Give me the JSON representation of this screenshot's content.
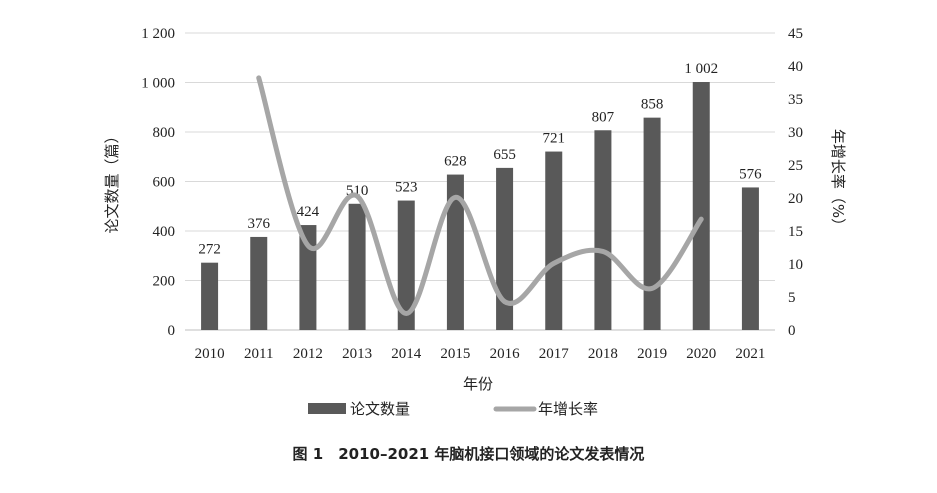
{
  "chart_data": {
    "type": "bar",
    "categories": [
      "2010",
      "2011",
      "2012",
      "2013",
      "2014",
      "2015",
      "2016",
      "2017",
      "2018",
      "2019",
      "2020",
      "2021"
    ],
    "series": [
      {
        "name": "论文数量",
        "type": "bar",
        "axis": "left",
        "color": "#595959",
        "values": [
          272,
          376,
          424,
          510,
          523,
          628,
          655,
          721,
          807,
          858,
          1002,
          576
        ],
        "labels": [
          "272",
          "376",
          "424",
          "510",
          "523",
          "628",
          "655",
          "721",
          "807",
          "858",
          "1 002",
          "576"
        ]
      },
      {
        "name": "年增长率",
        "type": "line",
        "axis": "right",
        "color": "#a6a6a6",
        "values": [
          null,
          38.2,
          12.8,
          20.3,
          2.5,
          20.1,
          4.3,
          10.1,
          11.9,
          6.3,
          16.8,
          null
        ]
      }
    ],
    "xlabel": "年份",
    "ylabel": "论文数量（篇）",
    "y2label": "年增长率（%）",
    "ylim": [
      0,
      1200
    ],
    "y2lim": [
      0,
      45
    ],
    "yticks": [
      "0",
      "200",
      "400",
      "600",
      "800",
      "1 000",
      "1 200"
    ],
    "y2ticks": [
      "0",
      "5",
      "10",
      "15",
      "20",
      "25",
      "30",
      "35",
      "40",
      "45"
    ],
    "grid": "horizontal",
    "legend": "bottom"
  },
  "caption": "图 1　2010–2021 年脑机接口领域的论文发表情况"
}
